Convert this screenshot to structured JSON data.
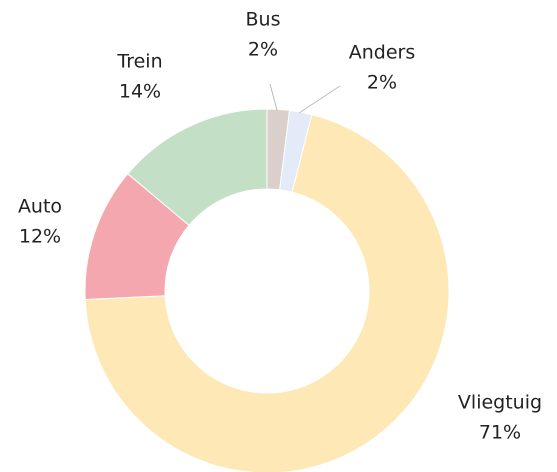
{
  "chart_data": {
    "type": "donut",
    "categories": [
      "Bus",
      "Anders",
      "Vliegtuig",
      "Auto",
      "Trein"
    ],
    "values": [
      2,
      2,
      71,
      12,
      14
    ],
    "value_labels": [
      "2%",
      "2%",
      "71%",
      "12%",
      "14%"
    ],
    "colors": [
      "#dacfca",
      "#e3ebf8",
      "#fee8b5",
      "#f4a7ae",
      "#c3dfc5"
    ]
  }
}
